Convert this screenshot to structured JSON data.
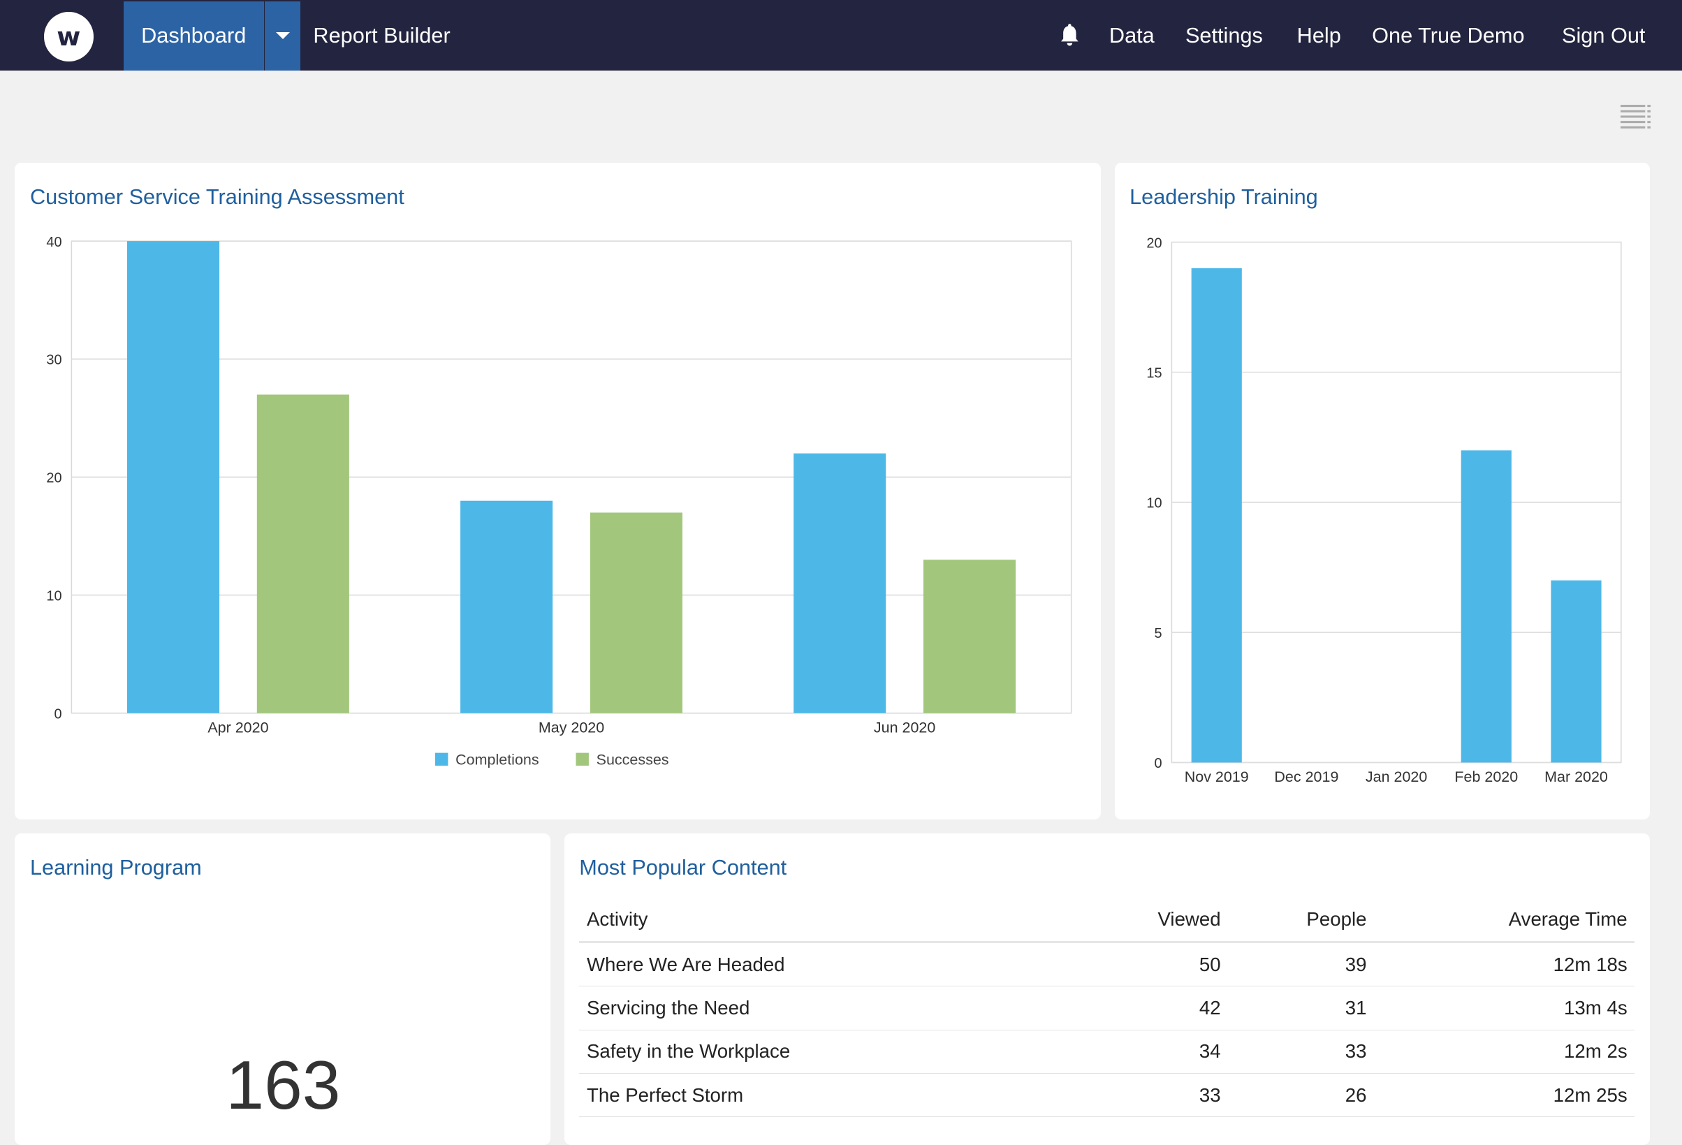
{
  "nav": {
    "logo": "w",
    "dashboard": "Dashboard",
    "report_builder": "Report Builder",
    "data": "Data",
    "settings": "Settings",
    "help": "Help",
    "account": "One True Demo",
    "sign_out": "Sign Out"
  },
  "cards": {
    "cst_title": "Customer Service Training Assessment",
    "leadership_title": "Leadership Training",
    "learning_title": "Learning Program",
    "learning_value": "163",
    "popular_title": "Most Popular Content"
  },
  "chart_data": [
    {
      "type": "bar",
      "title": "Customer Service Training Assessment",
      "categories": [
        "Apr 2020",
        "May 2020",
        "Jun 2020"
      ],
      "series": [
        {
          "name": "Completions",
          "values": [
            40,
            18,
            22
          ],
          "color": "#4db8e8"
        },
        {
          "name": "Successes",
          "values": [
            27,
            17,
            13
          ],
          "color": "#a2c77c"
        }
      ],
      "ylim": [
        0,
        40
      ],
      "yticks": [
        0,
        10,
        20,
        30,
        40
      ],
      "grid": true,
      "legend": "bottom"
    },
    {
      "type": "bar",
      "title": "Leadership Training",
      "categories": [
        "Nov 2019",
        "Dec 2019",
        "Jan 2020",
        "Feb 2020",
        "Mar 2020"
      ],
      "series": [
        {
          "values": [
            19,
            0,
            0,
            12,
            7
          ],
          "color": "#4db8e8"
        }
      ],
      "ylim": [
        0,
        20
      ],
      "yticks": [
        0,
        5,
        10,
        15,
        20
      ],
      "grid": true,
      "legend": "none"
    }
  ],
  "popular": {
    "headers": [
      "Activity",
      "Viewed",
      "People",
      "Average Time"
    ],
    "rows": [
      [
        "Where We Are Headed",
        "50",
        "39",
        "12m 18s"
      ],
      [
        "Servicing the Need",
        "42",
        "31",
        "13m 4s"
      ],
      [
        "Safety in the Workplace",
        "34",
        "33",
        "12m 2s"
      ],
      [
        "The Perfect Storm",
        "33",
        "26",
        "12m 25s"
      ]
    ]
  },
  "icons": {
    "bell": "bell-icon",
    "menu": "list-menu-icon",
    "caret": "caret-down-icon"
  }
}
